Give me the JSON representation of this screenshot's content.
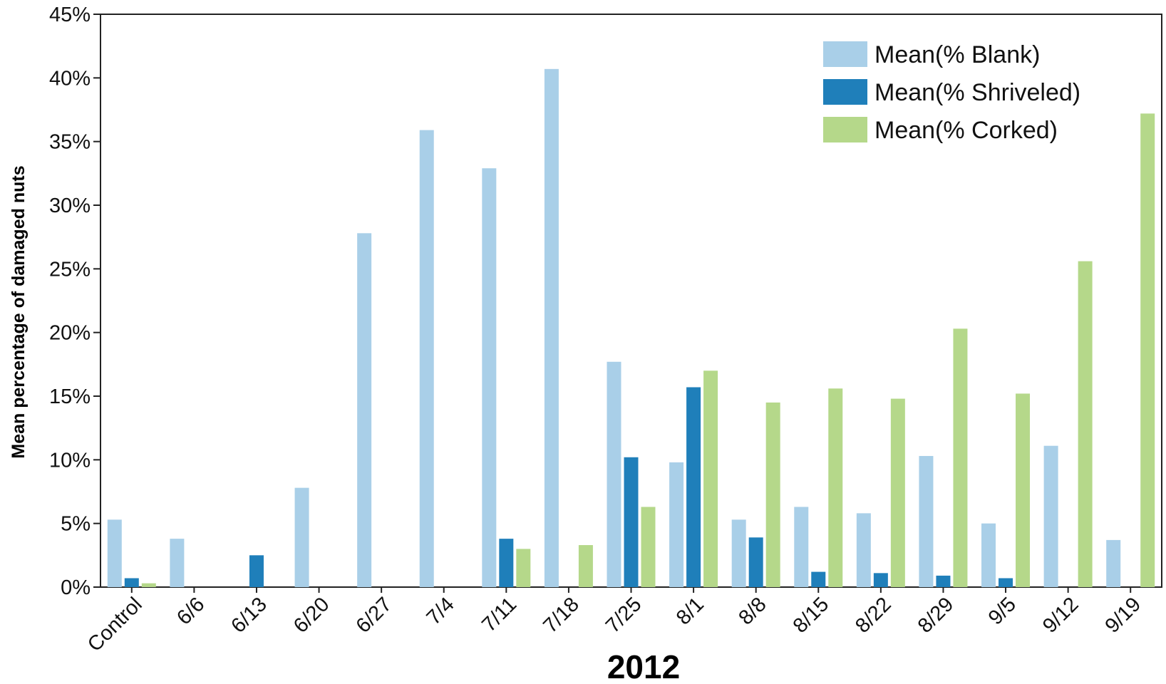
{
  "chart_data": {
    "type": "bar",
    "title": "",
    "xlabel": "2012",
    "ylabel": "Mean percentage of damaged nuts",
    "ylim": [
      0,
      45
    ],
    "y_ticks": [
      "0%",
      "5%",
      "10%",
      "15%",
      "20%",
      "25%",
      "30%",
      "35%",
      "40%",
      "45%"
    ],
    "y_tick_values": [
      0,
      5,
      10,
      15,
      20,
      25,
      30,
      35,
      40,
      45
    ],
    "categories": [
      "Control",
      "6/6",
      "6/13",
      "6/20",
      "6/27",
      "7/4",
      "7/11",
      "7/18",
      "7/25",
      "8/1",
      "8/8",
      "8/15",
      "8/22",
      "8/29",
      "9/5",
      "9/12",
      "9/19"
    ],
    "series": [
      {
        "name": "Mean(% Blank)",
        "color": "#a9cfe8",
        "values": [
          5.3,
          3.8,
          0,
          7.8,
          27.8,
          35.9,
          32.9,
          40.7,
          17.7,
          9.8,
          5.3,
          6.3,
          5.8,
          10.3,
          5.0,
          11.1,
          3.7
        ]
      },
      {
        "name": "Mean(% Shriveled)",
        "color": "#1f7fba",
        "values": [
          0.7,
          0,
          2.5,
          0,
          0,
          0,
          3.8,
          0,
          10.2,
          15.7,
          3.9,
          1.2,
          1.1,
          0.9,
          0.7,
          0,
          0
        ]
      },
      {
        "name": "Mean(% Corked)",
        "color": "#b5d88a",
        "values": [
          0.3,
          0,
          0,
          0,
          0,
          0,
          3.0,
          3.3,
          6.3,
          17.0,
          14.5,
          15.6,
          14.8,
          20.3,
          15.2,
          25.6,
          37.2
        ]
      }
    ],
    "grid": false,
    "legend_position": "top-right"
  }
}
